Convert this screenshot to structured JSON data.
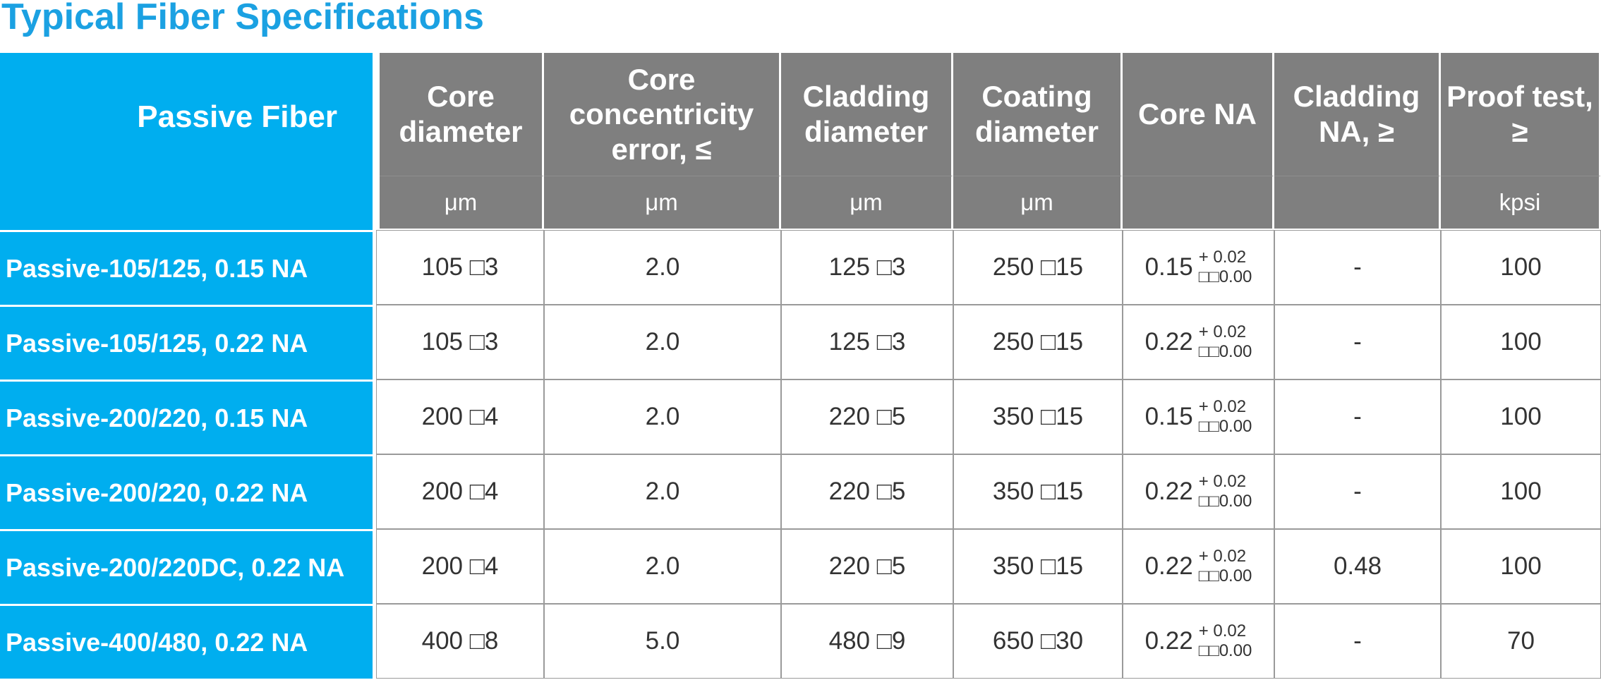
{
  "title": "Typical Fiber Specifications",
  "table": {
    "corner": "Passive Fiber",
    "headers": [
      "Core diameter",
      "Core concentricity error, ≤",
      "Cladding diameter",
      "Coating diameter",
      "Core NA",
      "Cladding NA, ≥",
      "Proof test, ≥"
    ],
    "units": [
      "μm",
      "μm",
      "μm",
      "μm",
      null,
      null,
      "kpsi"
    ],
    "rows": [
      [
        "Passive-105/125, 0.15 NA",
        "105 □3",
        "2.0",
        "125 □3",
        "250 □15",
        {
          "value": "0.15",
          "plus": "+ 0.02",
          "minus": "□□0.00"
        },
        "-",
        "100"
      ],
      [
        "Passive-105/125, 0.22 NA",
        "105 □3",
        "2.0",
        "125 □3",
        "250 □15",
        {
          "value": "0.22",
          "plus": "+ 0.02",
          "minus": "□□0.00"
        },
        "-",
        "100"
      ],
      [
        "Passive-200/220, 0.15 NA",
        "200 □4",
        "2.0",
        "220 □5",
        "350 □15",
        {
          "value": "0.15",
          "plus": "+ 0.02",
          "minus": "□□0.00"
        },
        "-",
        "100"
      ],
      [
        "Passive-200/220, 0.22 NA",
        "200 □4",
        "2.0",
        "220 □5",
        "350 □15",
        {
          "value": "0.22",
          "plus": "+ 0.02",
          "minus": "□□0.00"
        },
        "-",
        "100"
      ],
      [
        "Passive-200/220DC, 0.22 NA",
        "200 □4",
        "2.0",
        "220 □5",
        "350 □15",
        {
          "value": "0.22",
          "plus": "+ 0.02",
          "minus": "□□0.00"
        },
        "0.48",
        "100"
      ],
      [
        "Passive-400/480, 0.22 NA",
        "400 □8",
        "5.0",
        "480 □9",
        "650 □30",
        {
          "value": "0.22",
          "plus": "+ 0.02",
          "minus": "□□0.00"
        },
        "-",
        "70"
      ]
    ]
  }
}
